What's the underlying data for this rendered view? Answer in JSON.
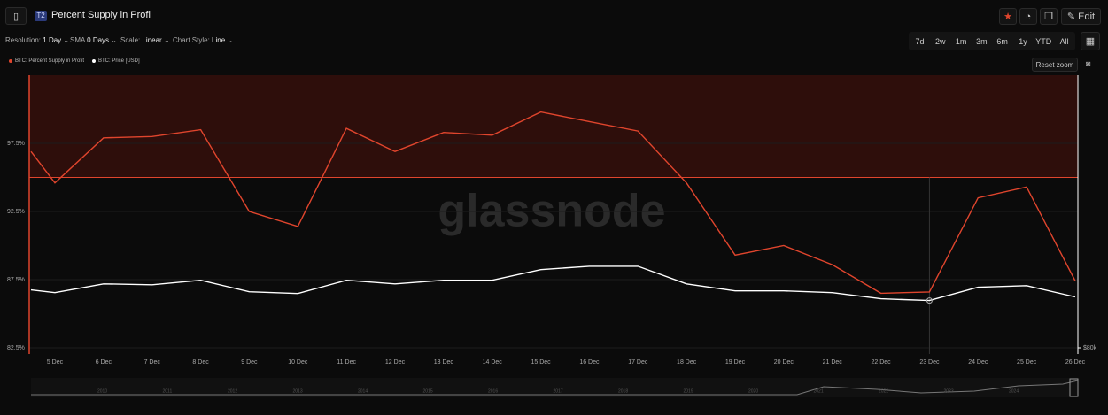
{
  "header": {
    "badge": "T2",
    "title": "Percent Supply in Profi",
    "edit": "Edit"
  },
  "toolbar": {
    "resolution_label": "Resolution:",
    "resolution": "1 Day",
    "sma_label": "SMA",
    "sma": "0 Days",
    "scale_label": "Scale:",
    "scale": "Linear",
    "style_label": "Chart Style:",
    "style": "Line",
    "ranges": [
      "7d",
      "2w",
      "1m",
      "3m",
      "6m",
      "1y",
      "YTD",
      "All"
    ]
  },
  "reset_zoom": "Reset zoom",
  "watermark": "glassnode",
  "chart_data": {
    "type": "line",
    "categories": [
      null,
      "5 Dec",
      "6 Dec",
      "7 Dec",
      "8 Dec",
      "9 Dec",
      "10 Dec",
      "11 Dec",
      "12 Dec",
      "13 Dec",
      "14 Dec",
      "15 Dec",
      "16 Dec",
      "17 Dec",
      "18 Dec",
      "19 Dec",
      "20 Dec",
      "21 Dec",
      "22 Dec",
      "23 Dec",
      "24 Dec",
      "25 Dec",
      "26 Dec"
    ],
    "series": [
      {
        "name": "BTC: Percent Supply in Profit",
        "color": "#e0452d",
        "values": [
          96.9,
          94.6,
          97.9,
          98.0,
          98.5,
          92.5,
          91.4,
          98.6,
          96.9,
          98.3,
          98.1,
          99.8,
          99.1,
          98.4,
          94.6,
          89.3,
          90.0,
          88.6,
          86.5,
          86.6,
          93.5,
          94.3,
          87.4
        ]
      },
      {
        "name": "BTC: Price [USD]",
        "color": "#ffffff",
        "axis": "y2",
        "values": [
          99100,
          98200,
          101100,
          100800,
          102300,
          98500,
          97900,
          102300,
          101100,
          102300,
          102300,
          105800,
          106900,
          106900,
          101100,
          98800,
          98800,
          98200,
          96200,
          95600,
          100000,
          100500,
          96800
        ]
      }
    ],
    "ylim": [
      82.5,
      102.5
    ],
    "yticks": [
      {
        "value": 82.5,
        "label": "82.5%"
      },
      {
        "value": 87.5,
        "label": "87.5%"
      },
      {
        "value": 92.5,
        "label": "92.5%"
      },
      {
        "value": 97.5,
        "label": "97.5%"
      }
    ],
    "y2lim": [
      80000,
      170000
    ],
    "y2ticks": [
      {
        "value": 80000,
        "label": "$80k"
      }
    ],
    "threshold": 95
  },
  "navigator": {
    "years": [
      "2010",
      "2011",
      "2012",
      "2013",
      "2014",
      "2015",
      "2016",
      "2017",
      "2018",
      "2019",
      "2020",
      "2021",
      "2022",
      "2023",
      "2024"
    ]
  }
}
